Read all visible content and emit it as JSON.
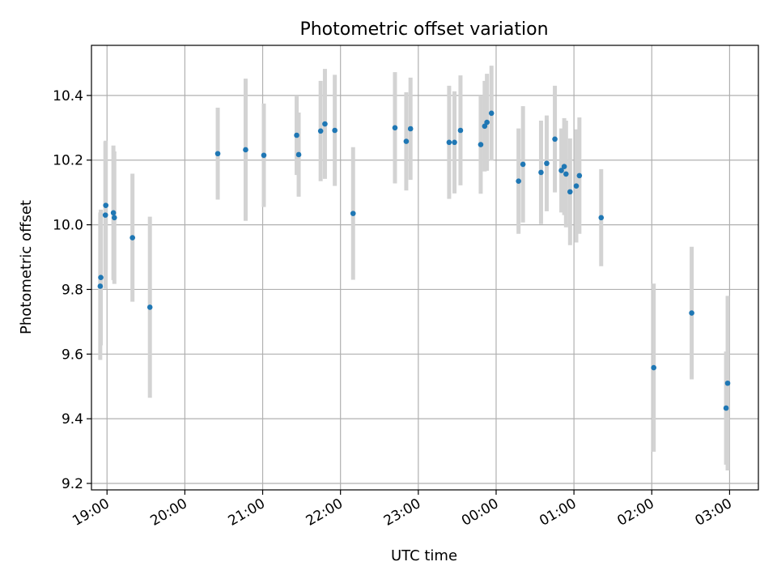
{
  "chart_data": {
    "type": "scatter",
    "title": "Photometric offset variation",
    "xlabel": "UTC time",
    "ylabel": "Photometric offset",
    "grid": true,
    "legend": "none",
    "colors": {
      "points": "#1f77b4",
      "errorbars": "#d3d3d3",
      "grid": "#b0b0b0",
      "axes": "#000000"
    },
    "x_unit": "hours after 00:00 UTC on first night (negative = previous evening)",
    "xlim": [
      -5.2,
      3.37
    ],
    "ylim": [
      9.18,
      10.555
    ],
    "x_ticks": [
      {
        "value": -5,
        "label": "19:00"
      },
      {
        "value": -4,
        "label": "20:00"
      },
      {
        "value": -3,
        "label": "21:00"
      },
      {
        "value": -2,
        "label": "22:00"
      },
      {
        "value": -1,
        "label": "23:00"
      },
      {
        "value": 0,
        "label": "00:00"
      },
      {
        "value": 1,
        "label": "01:00"
      },
      {
        "value": 2,
        "label": "02:00"
      },
      {
        "value": 3,
        "label": "03:00"
      }
    ],
    "y_ticks": [
      {
        "value": 9.2,
        "label": "9.2"
      },
      {
        "value": 9.4,
        "label": "9.4"
      },
      {
        "value": 9.6,
        "label": "9.6"
      },
      {
        "value": 9.8,
        "label": "9.8"
      },
      {
        "value": 10.0,
        "label": "10.0"
      },
      {
        "value": 10.2,
        "label": "10.2"
      },
      {
        "value": 10.4,
        "label": "10.4"
      }
    ],
    "points": [
      {
        "time": "18:55",
        "x": -5.087,
        "y": 9.81,
        "err": 0.228
      },
      {
        "time": "18:55",
        "x": -5.08,
        "y": 9.837,
        "err": 0.21
      },
      {
        "time": "18:59",
        "x": -5.021,
        "y": 10.03,
        "err": 0.228
      },
      {
        "time": "18:59",
        "x": -5.016,
        "y": 10.06,
        "err": 0.2
      },
      {
        "time": "19:05",
        "x": -4.918,
        "y": 10.037,
        "err": 0.208
      },
      {
        "time": "19:06",
        "x": -4.906,
        "y": 10.022,
        "err": 0.205
      },
      {
        "time": "19:20",
        "x": -4.673,
        "y": 9.96,
        "err": 0.198
      },
      {
        "time": "19:33",
        "x": -4.449,
        "y": 9.745,
        "err": 0.28
      },
      {
        "time": "20:25",
        "x": -3.577,
        "y": 10.22,
        "err": 0.142
      },
      {
        "time": "20:47",
        "x": -3.219,
        "y": 10.232,
        "err": 0.22
      },
      {
        "time": "21:01",
        "x": -2.985,
        "y": 10.215,
        "err": 0.16
      },
      {
        "time": "21:27",
        "x": -2.563,
        "y": 10.277,
        "err": 0.123
      },
      {
        "time": "21:28",
        "x": -2.537,
        "y": 10.217,
        "err": 0.13
      },
      {
        "time": "21:45",
        "x": -2.255,
        "y": 10.29,
        "err": 0.155
      },
      {
        "time": "21:48",
        "x": -2.2,
        "y": 10.312,
        "err": 0.17
      },
      {
        "time": "21:56",
        "x": -2.073,
        "y": 10.292,
        "err": 0.172
      },
      {
        "time": "22:10",
        "x": -1.838,
        "y": 10.035,
        "err": 0.205
      },
      {
        "time": "22:42",
        "x": -1.3,
        "y": 10.3,
        "err": 0.172
      },
      {
        "time": "22:51",
        "x": -1.155,
        "y": 10.258,
        "err": 0.152
      },
      {
        "time": "22:54",
        "x": -1.1,
        "y": 10.297,
        "err": 0.158
      },
      {
        "time": "23:24",
        "x": -0.604,
        "y": 10.255,
        "err": 0.175
      },
      {
        "time": "23:28",
        "x": -0.535,
        "y": 10.255,
        "err": 0.158
      },
      {
        "time": "23:33",
        "x": -0.458,
        "y": 10.292,
        "err": 0.17
      },
      {
        "time": "23:48",
        "x": -0.198,
        "y": 10.248,
        "err": 0.152
      },
      {
        "time": "23:51",
        "x": -0.147,
        "y": 10.305,
        "err": 0.14
      },
      {
        "time": "23:53",
        "x": -0.118,
        "y": 10.317,
        "err": 0.15
      },
      {
        "time": "23:56",
        "x": -0.06,
        "y": 10.345,
        "err": 0.147
      },
      {
        "time": "00:17",
        "x": 0.288,
        "y": 10.135,
        "err": 0.163
      },
      {
        "time": "00:20",
        "x": 0.345,
        "y": 10.187,
        "err": 0.18
      },
      {
        "time": "00:35",
        "x": 0.577,
        "y": 10.162,
        "err": 0.16
      },
      {
        "time": "00:39",
        "x": 0.65,
        "y": 10.19,
        "err": 0.148
      },
      {
        "time": "00:45",
        "x": 0.755,
        "y": 10.265,
        "err": 0.165
      },
      {
        "time": "00:50",
        "x": 0.838,
        "y": 10.168,
        "err": 0.13
      },
      {
        "time": "00:52",
        "x": 0.875,
        "y": 10.18,
        "err": 0.15
      },
      {
        "time": "00:54",
        "x": 0.898,
        "y": 10.157,
        "err": 0.165
      },
      {
        "time": "00:57",
        "x": 0.95,
        "y": 10.102,
        "err": 0.165
      },
      {
        "time": "01:02",
        "x": 1.03,
        "y": 10.12,
        "err": 0.175
      },
      {
        "time": "01:04",
        "x": 1.07,
        "y": 10.152,
        "err": 0.18
      },
      {
        "time": "01:21",
        "x": 1.35,
        "y": 10.022,
        "err": 0.15
      },
      {
        "time": "02:02",
        "x": 2.025,
        "y": 9.558,
        "err": 0.26
      },
      {
        "time": "02:31",
        "x": 2.513,
        "y": 9.727,
        "err": 0.205
      },
      {
        "time": "02:57",
        "x": 2.955,
        "y": 9.433,
        "err": 0.175
      },
      {
        "time": "02:58",
        "x": 2.975,
        "y": 9.51,
        "err": 0.27
      }
    ]
  }
}
